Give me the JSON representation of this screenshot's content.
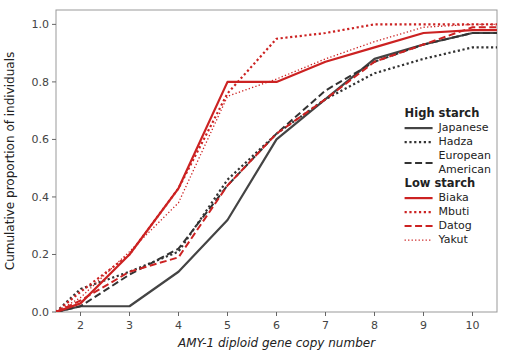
{
  "chart_data": {
    "type": "line",
    "xlabel": "AMY-1 diploid gene copy number",
    "ylabel": "Cumulative proportion of individuals",
    "x": [
      1.5,
      2,
      3,
      4,
      5,
      6,
      7,
      8,
      9,
      10,
      10.5
    ],
    "xlim": [
      1.5,
      10.5
    ],
    "ylim": [
      0.0,
      1.05
    ],
    "xticks": [
      2,
      3,
      4,
      5,
      6,
      7,
      8,
      9,
      10
    ],
    "yticks": [
      {
        "value": 0.0,
        "label": "0.0"
      },
      0.2,
      0.4,
      0.6,
      0.8,
      {
        "value": 1.0,
        "label": "1.0"
      }
    ],
    "legend": "right",
    "series": [
      {
        "name": "Japanese",
        "group": "High starch",
        "color": "#444444",
        "line_style": "solid",
        "values": [
          0.0,
          0.02,
          0.02,
          0.14,
          0.32,
          0.6,
          0.74,
          0.88,
          0.93,
          0.97,
          0.97
        ]
      },
      {
        "name": "Hadza",
        "group": "High starch",
        "color": "#333333",
        "line_style": "dotted",
        "values": [
          0.0,
          0.08,
          0.14,
          0.21,
          0.46,
          0.62,
          0.74,
          0.83,
          0.88,
          0.92,
          0.92
        ]
      },
      {
        "name": "European\nAmerican",
        "group": "High starch",
        "color": "#333333",
        "line_style": "dashed",
        "values": [
          0.0,
          0.02,
          0.13,
          0.22,
          0.44,
          0.62,
          0.77,
          0.87,
          0.93,
          0.97,
          0.97
        ]
      },
      {
        "name": "Biaka",
        "group": "Low starch",
        "color": "#cc2222",
        "line_style": "solid",
        "values": [
          0.0,
          0.03,
          0.2,
          0.43,
          0.8,
          0.8,
          0.87,
          0.92,
          0.97,
          0.98,
          0.98
        ]
      },
      {
        "name": "Mbuti",
        "group": "Low starch",
        "color": "#cc2222",
        "line_style": "dotted",
        "values": [
          0.0,
          0.07,
          0.2,
          0.43,
          0.76,
          0.95,
          0.97,
          1.0,
          1.0,
          1.0,
          1.0
        ]
      },
      {
        "name": "Datog",
        "group": "Low starch",
        "color": "#cc2222",
        "line_style": "dashed",
        "values": [
          0.0,
          0.04,
          0.14,
          0.19,
          0.44,
          0.62,
          0.74,
          0.87,
          0.93,
          0.99,
          0.99
        ]
      },
      {
        "name": "Yakut",
        "group": "Low starch",
        "color": "#cc2222",
        "line_style": "fine-dotted",
        "values": [
          0.0,
          0.05,
          0.21,
          0.38,
          0.75,
          0.81,
          0.88,
          0.94,
          0.99,
          1.0,
          1.0
        ]
      }
    ]
  }
}
